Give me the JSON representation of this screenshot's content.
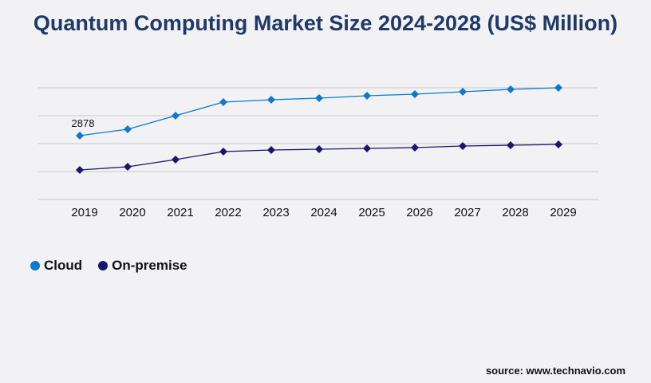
{
  "title": "Quantum Computing Market Size 2024-2028 (US$ Million)",
  "source": "source: www.technavio.com",
  "chart_data": {
    "type": "line",
    "title": "Quantum Computing Market Size 2024-2028 (US$ Million)",
    "x": [
      "2019",
      "2020",
      "2021",
      "2022",
      "2023",
      "2024",
      "2025",
      "2026",
      "2027",
      "2028",
      "2029"
    ],
    "ylim": [
      0,
      5036
    ],
    "grid": true,
    "legend_position": "bottom-left",
    "series": [
      {
        "name": "Cloud",
        "color": "#0a7ad1",
        "values": [
          2878,
          3166,
          3777,
          4389,
          4497,
          4569,
          4677,
          4749,
          4857,
          4965,
          5037
        ]
      },
      {
        "name": "On-premise",
        "color": "#1a1670",
        "values": [
          1331,
          1475,
          1799,
          2159,
          2230,
          2266,
          2302,
          2338,
          2410,
          2446,
          2482
        ]
      }
    ],
    "annotations": [
      {
        "series": "Cloud",
        "x": "2019",
        "label": "2878"
      }
    ]
  }
}
